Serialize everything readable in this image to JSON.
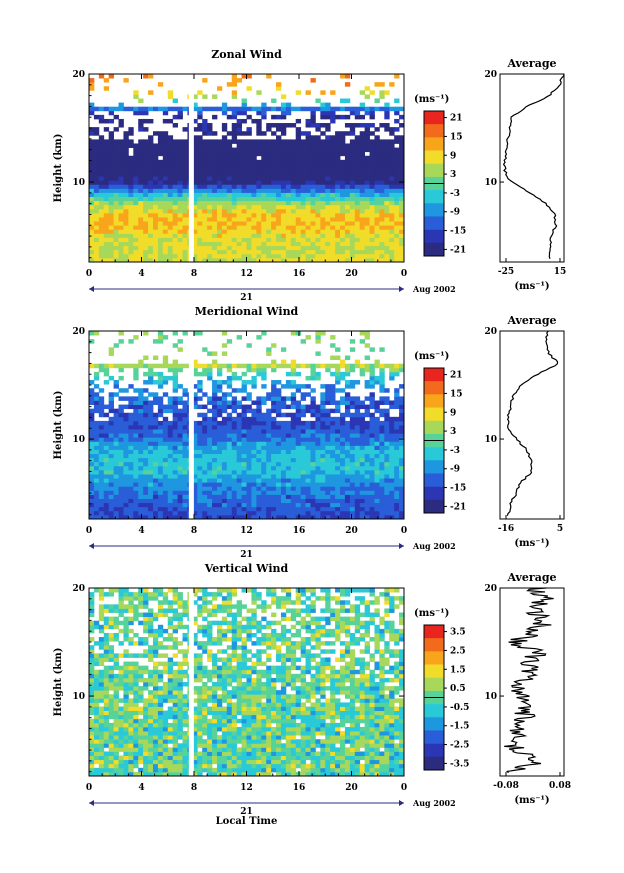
{
  "chart_data": [
    {
      "type": "heatmap",
      "title": "Zonal Wind",
      "ylabel": "Height (km)",
      "ylim": [
        2.6,
        20
      ],
      "yticks": [
        "20",
        "10"
      ],
      "xlim": [
        0,
        24
      ],
      "xticks": [
        "0",
        "4",
        "8",
        "12",
        "16",
        "20",
        "0"
      ],
      "day_label": "21",
      "date_label": "Aug 2002",
      "colorbar": {
        "unit": "(ms⁻¹)",
        "ticks": [
          "21",
          "15",
          "9",
          "3",
          "-3",
          "-9",
          "-15",
          "-21"
        ]
      },
      "gap_hour": 7.8,
      "profile": {
        "title": "Average",
        "xticks": [
          "-25",
          "15"
        ],
        "xlim": [
          -25,
          15
        ],
        "xlabel": "(ms⁻¹)",
        "yticks": [
          "20",
          "10"
        ],
        "heights": [
          3,
          4,
          5,
          6,
          7,
          8,
          9,
          10,
          11,
          12,
          13,
          14,
          15,
          16,
          17,
          18,
          19,
          20
        ],
        "values": [
          6,
          6,
          7,
          10,
          9,
          4,
          -6,
          -18,
          -22,
          -22,
          -21,
          -20,
          -19,
          -18,
          -8,
          6,
          12,
          15
        ]
      }
    },
    {
      "type": "heatmap",
      "title": "Meridional Wind",
      "ylabel": "Height (km)",
      "ylim": [
        2.6,
        20
      ],
      "yticks": [
        "20",
        "10"
      ],
      "xlim": [
        0,
        24
      ],
      "xticks": [
        "0",
        "4",
        "8",
        "12",
        "16",
        "20",
        "0"
      ],
      "day_label": "21",
      "date_label": "Aug 2002",
      "colorbar": {
        "unit": "(ms⁻¹)",
        "ticks": [
          "21",
          "15",
          "9",
          "3",
          "-3",
          "-9",
          "-15",
          "-21"
        ]
      },
      "gap_hour": 7.8,
      "profile": {
        "title": "Average",
        "xticks": [
          "-16",
          "5"
        ],
        "xlim": [
          -16,
          8
        ],
        "xlabel": "(ms⁻¹)",
        "yticks": [
          "20",
          "10"
        ],
        "heights": [
          3,
          4,
          5,
          6,
          7,
          8,
          9,
          10,
          11,
          12,
          13,
          14,
          15,
          16,
          17,
          18,
          19,
          20
        ],
        "values": [
          -13,
          -12,
          -10,
          -8,
          -4,
          -4,
          -6,
          -10,
          -13,
          -13,
          -12,
          -11,
          -8,
          -2,
          6,
          2,
          1,
          2
        ]
      }
    },
    {
      "type": "heatmap",
      "title": "Vertical Wind",
      "ylabel": "Height (km)",
      "xlabel": "Local Time",
      "ylim": [
        2.6,
        20
      ],
      "yticks": [
        "20",
        "10"
      ],
      "xlim": [
        0,
        24
      ],
      "xticks": [
        "0",
        "4",
        "8",
        "12",
        "16",
        "20",
        "0"
      ],
      "day_label": "21",
      "date_label": "Aug 2002",
      "colorbar": {
        "unit": "(ms⁻¹)",
        "ticks": [
          "3.5",
          "2.5",
          "1.5",
          "0.5",
          "-0.5",
          "-1.5",
          "-2.5",
          "-3.5"
        ]
      },
      "gap_hour": 7.8,
      "profile": {
        "title": "Average",
        "xticks": [
          "-0.08",
          "0.08"
        ],
        "xlim": [
          -0.08,
          0.08
        ],
        "xlabel": "(ms⁻¹)",
        "yticks": [
          "20",
          "10"
        ],
        "heights": [
          3,
          4,
          5,
          6,
          7,
          8,
          9,
          10,
          11,
          12,
          13,
          14,
          15,
          16,
          17,
          18,
          19,
          20
        ],
        "values": [
          -0.06,
          0.02,
          -0.04,
          -0.05,
          -0.03,
          -0.02,
          -0.01,
          -0.02,
          -0.03,
          0.0,
          -0.01,
          0.01,
          -0.04,
          0.01,
          0.03,
          0.0,
          0.03,
          0.01
        ]
      }
    }
  ]
}
